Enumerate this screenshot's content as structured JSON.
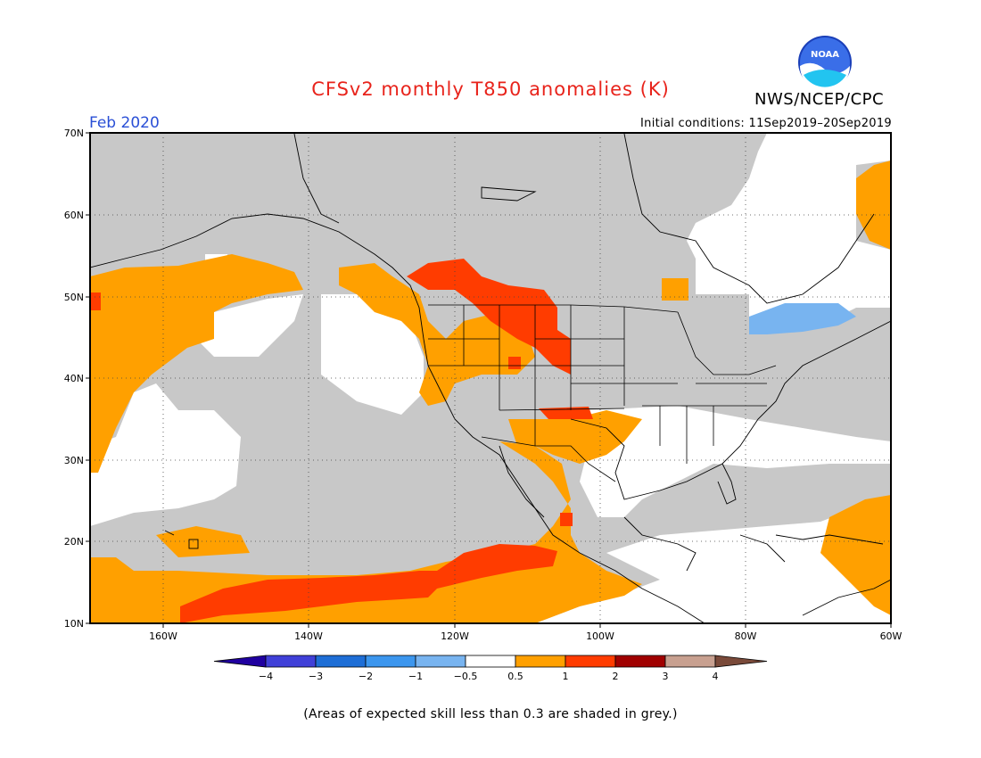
{
  "header": {
    "title": "CFSv2 monthly T850 anomalies (K)",
    "period": "Feb 2020",
    "agency": "NWS/NCEP/CPC",
    "initial_conditions": "Initial conditions: 11Sep2019–20Sep2019",
    "logo_text": "NOAA"
  },
  "map": {
    "lat_labels": [
      "70N",
      "60N",
      "50N",
      "40N",
      "30N",
      "20N",
      "10N"
    ],
    "lon_labels": [
      "160W",
      "140W",
      "120W",
      "100W",
      "80W",
      "60W"
    ],
    "colors": {
      "grey_low_skill": "#c8c8c8",
      "neutral": "#ffffff",
      "warm_0_5_1": "#ffa000",
      "warm_1_2": "#ff3c00",
      "cool_m1_m0_5": "#78b4f0"
    }
  },
  "legend": {
    "labels": [
      "−4",
      "−3",
      "−2",
      "−1",
      "−0.5",
      "0.5",
      "1",
      "2",
      "3",
      "4"
    ],
    "colors": [
      "#2000a0",
      "#4040d8",
      "#1e6ed6",
      "#3c96ee",
      "#78b4f0",
      "#ffffff",
      "#ffa000",
      "#ff3c00",
      "#a00000",
      "#c8a090",
      "#7a4a3a"
    ]
  },
  "footnote": "(Areas of expected skill less than 0.3 are shaded in grey.)"
}
